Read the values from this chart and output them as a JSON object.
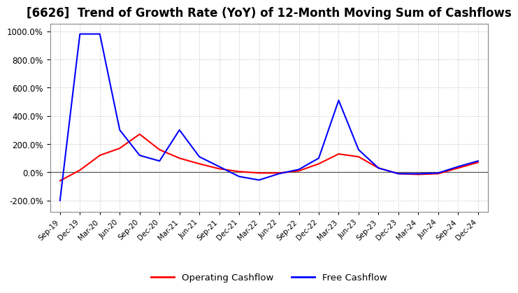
{
  "title": "[6626]  Trend of Growth Rate (YoY) of 12-Month Moving Sum of Cashflows",
  "title_fontsize": 12,
  "ylim": [
    -280,
    1050
  ],
  "yticks": [
    -200,
    0,
    200,
    400,
    600,
    800,
    1000
  ],
  "background_color": "#ffffff",
  "grid_color": "#bbbbbb",
  "legend_labels": [
    "Operating Cashflow",
    "Free Cashflow"
  ],
  "legend_colors": [
    "red",
    "blue"
  ],
  "x_labels": [
    "Sep-19",
    "Dec-19",
    "Mar-20",
    "Jun-20",
    "Sep-20",
    "Dec-20",
    "Mar-21",
    "Jun-21",
    "Sep-21",
    "Dec-21",
    "Mar-22",
    "Jun-22",
    "Sep-22",
    "Dec-22",
    "Mar-23",
    "Jun-23",
    "Sep-23",
    "Dec-23",
    "Mar-24",
    "Jun-24",
    "Sep-24",
    "Dec-24"
  ],
  "operating_cashflow": [
    -60,
    15,
    120,
    170,
    270,
    160,
    100,
    60,
    25,
    5,
    -5,
    -5,
    10,
    60,
    130,
    110,
    30,
    -10,
    -15,
    -10,
    30,
    70
  ],
  "free_cashflow": [
    -200,
    980,
    980,
    300,
    120,
    80,
    300,
    110,
    40,
    -30,
    -55,
    -10,
    20,
    100,
    510,
    160,
    30,
    -10,
    -10,
    -5,
    40,
    80
  ]
}
